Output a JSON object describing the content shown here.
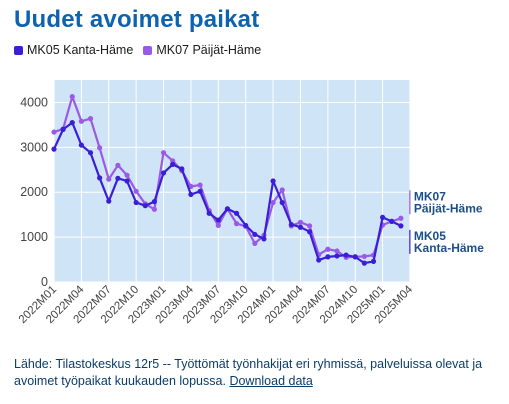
{
  "title": "Uudet avoimet paikat",
  "source_text": "Lähde: Tilastokeskus 12r5 -- Työttömät työnhakijat eri ryhmissä, palveluissa olevat ja avoimet työpaikat kuukauden lopussa.",
  "download_label": "Download data",
  "colors": {
    "background": "#cfe4f7",
    "grid": "#ffffff",
    "MK05": "#3a1fd6",
    "MK07": "#9a5ae6",
    "title": "#0d63b0"
  },
  "chart_data": {
    "type": "line",
    "x_tick_labels": [
      "2022M01",
      "2022M04",
      "2022M07",
      "2022M10",
      "2023M01",
      "2023M04",
      "2023M07",
      "2023M10",
      "2024M01",
      "2024M04",
      "2024M07",
      "2024M10",
      "2025M01",
      "2025M04"
    ],
    "xlim": [
      "2022M01",
      "2025M04"
    ],
    "ylim": [
      0,
      4500
    ],
    "y_ticks": [
      0,
      1000,
      2000,
      3000,
      4000
    ],
    "grid": true,
    "legend_placement": "top-left",
    "x": [
      "2022M01",
      "2022M02",
      "2022M03",
      "2022M04",
      "2022M05",
      "2022M06",
      "2022M07",
      "2022M08",
      "2022M09",
      "2022M10",
      "2022M11",
      "2022M12",
      "2023M01",
      "2023M02",
      "2023M03",
      "2023M04",
      "2023M05",
      "2023M06",
      "2023M07",
      "2023M08",
      "2023M09",
      "2023M10",
      "2023M11",
      "2023M12",
      "2024M01",
      "2024M02",
      "2024M03",
      "2024M04",
      "2024M05",
      "2024M06",
      "2024M07",
      "2024M08",
      "2024M09",
      "2024M10",
      "2024M11",
      "2024M12",
      "2025M01",
      "2025M02",
      "2025M03"
    ],
    "series": [
      {
        "name": "MK05 Kanta-Häme",
        "end_label": [
          "MK05",
          "Kanta-Häme"
        ],
        "values": [
          2960,
          3400,
          3550,
          3050,
          2880,
          2320,
          1800,
          2310,
          2250,
          1770,
          1700,
          1790,
          2430,
          2620,
          2520,
          1950,
          2020,
          1530,
          1380,
          1630,
          1530,
          1260,
          1060,
          960,
          2250,
          1770,
          1280,
          1220,
          1120,
          490,
          560,
          580,
          600,
          560,
          420,
          460,
          1440,
          1350,
          1250
        ]
      },
      {
        "name": "MK07 Päijät-Häme",
        "end_label": [
          "MK07",
          "Päijät-Häme"
        ],
        "values": [
          3340,
          3410,
          4130,
          3580,
          3640,
          2990,
          2290,
          2600,
          2380,
          2020,
          1740,
          1620,
          2880,
          2700,
          2480,
          2130,
          2160,
          1590,
          1260,
          1630,
          1300,
          1240,
          860,
          1040,
          1770,
          2050,
          1250,
          1330,
          1250,
          610,
          730,
          690,
          550,
          560,
          570,
          600,
          1270,
          1350,
          1420
        ]
      }
    ]
  }
}
